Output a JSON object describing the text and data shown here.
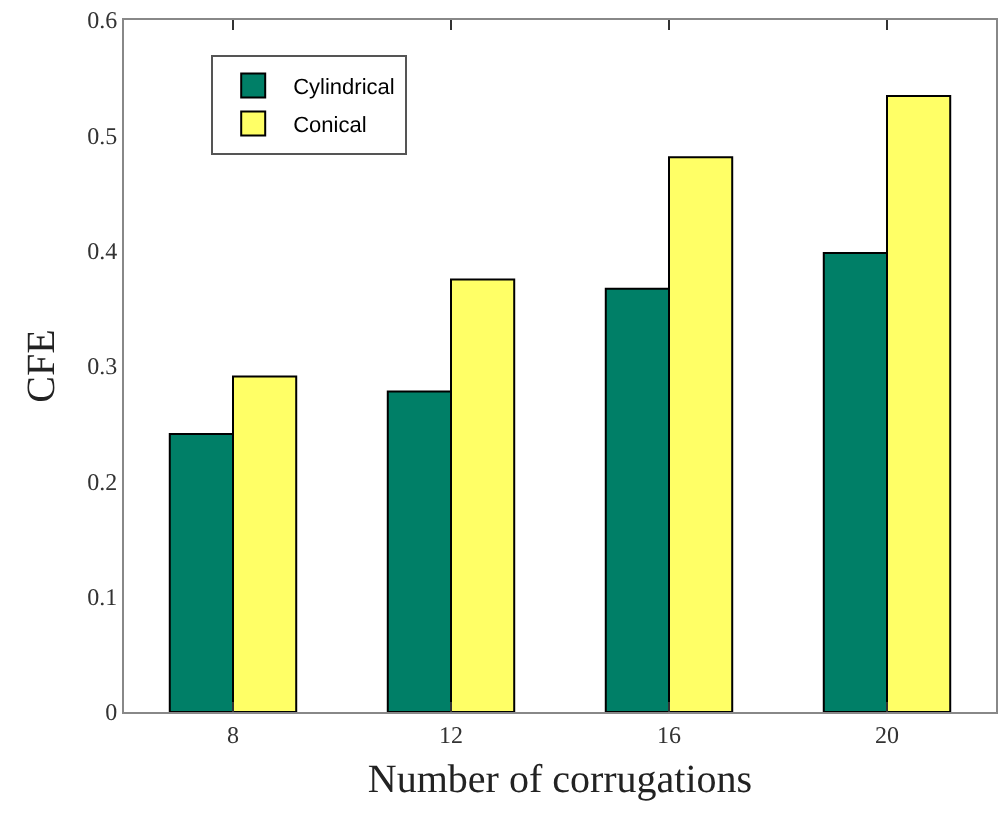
{
  "chart_data": {
    "type": "bar",
    "xlabel": "Number of corrugations",
    "ylabel": "CFE",
    "categories": [
      "8",
      "12",
      "16",
      "20"
    ],
    "series": [
      {
        "name": "Cylindrical",
        "color": "#007f67",
        "values": [
          0.241,
          0.278,
          0.367,
          0.398
        ]
      },
      {
        "name": "Conical",
        "color": "#ffff66",
        "values": [
          0.291,
          0.375,
          0.481,
          0.534
        ]
      }
    ],
    "ylim": [
      0,
      0.6
    ],
    "yticks": [
      0,
      0.1,
      0.2,
      0.3,
      0.4,
      0.5,
      0.6
    ],
    "legend": "top left"
  }
}
